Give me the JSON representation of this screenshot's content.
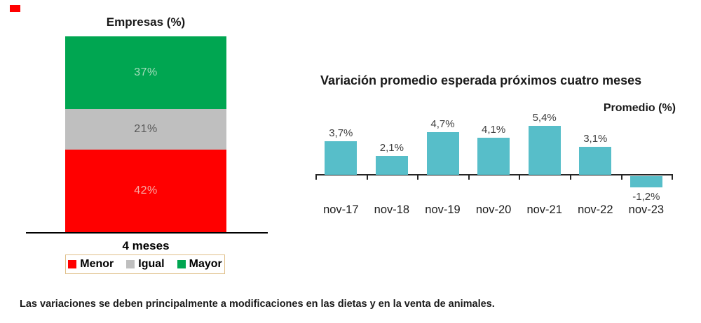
{
  "marker": {
    "color": "#ff0000"
  },
  "left_chart": {
    "title": "Empresas (%)",
    "xlabel": "4 meses",
    "segments": [
      {
        "name": "Mayor",
        "value": 37,
        "value_label": "37%",
        "color": "#00a651",
        "label_color": "#a8dcbb"
      },
      {
        "name": "Igual",
        "value": 21,
        "value_label": "21%",
        "color": "#bfbfbf",
        "label_color": "#595959"
      },
      {
        "name": "Menor",
        "value": 42,
        "value_label": "42%",
        "color": "#ff0000",
        "label_color": "#f8aba4"
      }
    ],
    "legend": [
      {
        "label": "Menor",
        "color": "#ff0000"
      },
      {
        "label": "Igual",
        "color": "#bfbfbf"
      },
      {
        "label": "Mayor",
        "color": "#00a651"
      }
    ]
  },
  "right_chart": {
    "title": "Variación promedio esperada próximos cuatro meses",
    "axis_label": "Promedio (%)",
    "bar_color": "#57bec9",
    "bars": [
      {
        "category": "nov-17",
        "value": 3.7,
        "value_label": "3,7%"
      },
      {
        "category": "nov-18",
        "value": 2.1,
        "value_label": "2,1%"
      },
      {
        "category": "nov-19",
        "value": 4.7,
        "value_label": "4,7%"
      },
      {
        "category": "nov-20",
        "value": 4.1,
        "value_label": "4,1%"
      },
      {
        "category": "nov-21",
        "value": 5.4,
        "value_label": "5,4%"
      },
      {
        "category": "nov-22",
        "value": 3.1,
        "value_label": "3,1%"
      },
      {
        "category": "nov-23",
        "value": -1.2,
        "value_label": "-1,2%"
      }
    ]
  },
  "footnote": "Las variaciones se deben principalmente a modificaciones en las dietas y en la venta de animales.",
  "chart_data": [
    {
      "type": "bar",
      "subtype": "stacked-column",
      "title": "Empresas (%)",
      "categories": [
        "4 meses"
      ],
      "series": [
        {
          "name": "Menor",
          "values": [
            42
          ],
          "color": "#ff0000"
        },
        {
          "name": "Igual",
          "values": [
            21
          ],
          "color": "#bfbfbf"
        },
        {
          "name": "Mayor",
          "values": [
            37
          ],
          "color": "#00a651"
        }
      ],
      "xlabel": "4 meses",
      "ylabel": "",
      "ylim": [
        0,
        100
      ],
      "grid": false,
      "legend_position": "bottom"
    },
    {
      "type": "bar",
      "title": "Variación promedio esperada próximos cuatro meses",
      "categories": [
        "nov-17",
        "nov-18",
        "nov-19",
        "nov-20",
        "nov-21",
        "nov-22",
        "nov-23"
      ],
      "values": [
        3.7,
        2.1,
        4.7,
        4.1,
        5.4,
        3.1,
        -1.2
      ],
      "value_labels": [
        "3,7%",
        "2,1%",
        "4,7%",
        "4,1%",
        "5,4%",
        "3,1%",
        "-1,2%"
      ],
      "xlabel": "",
      "ylabel": "Promedio (%)",
      "ylim": [
        -2,
        6
      ],
      "grid": false,
      "bar_color": "#57bec9"
    }
  ]
}
